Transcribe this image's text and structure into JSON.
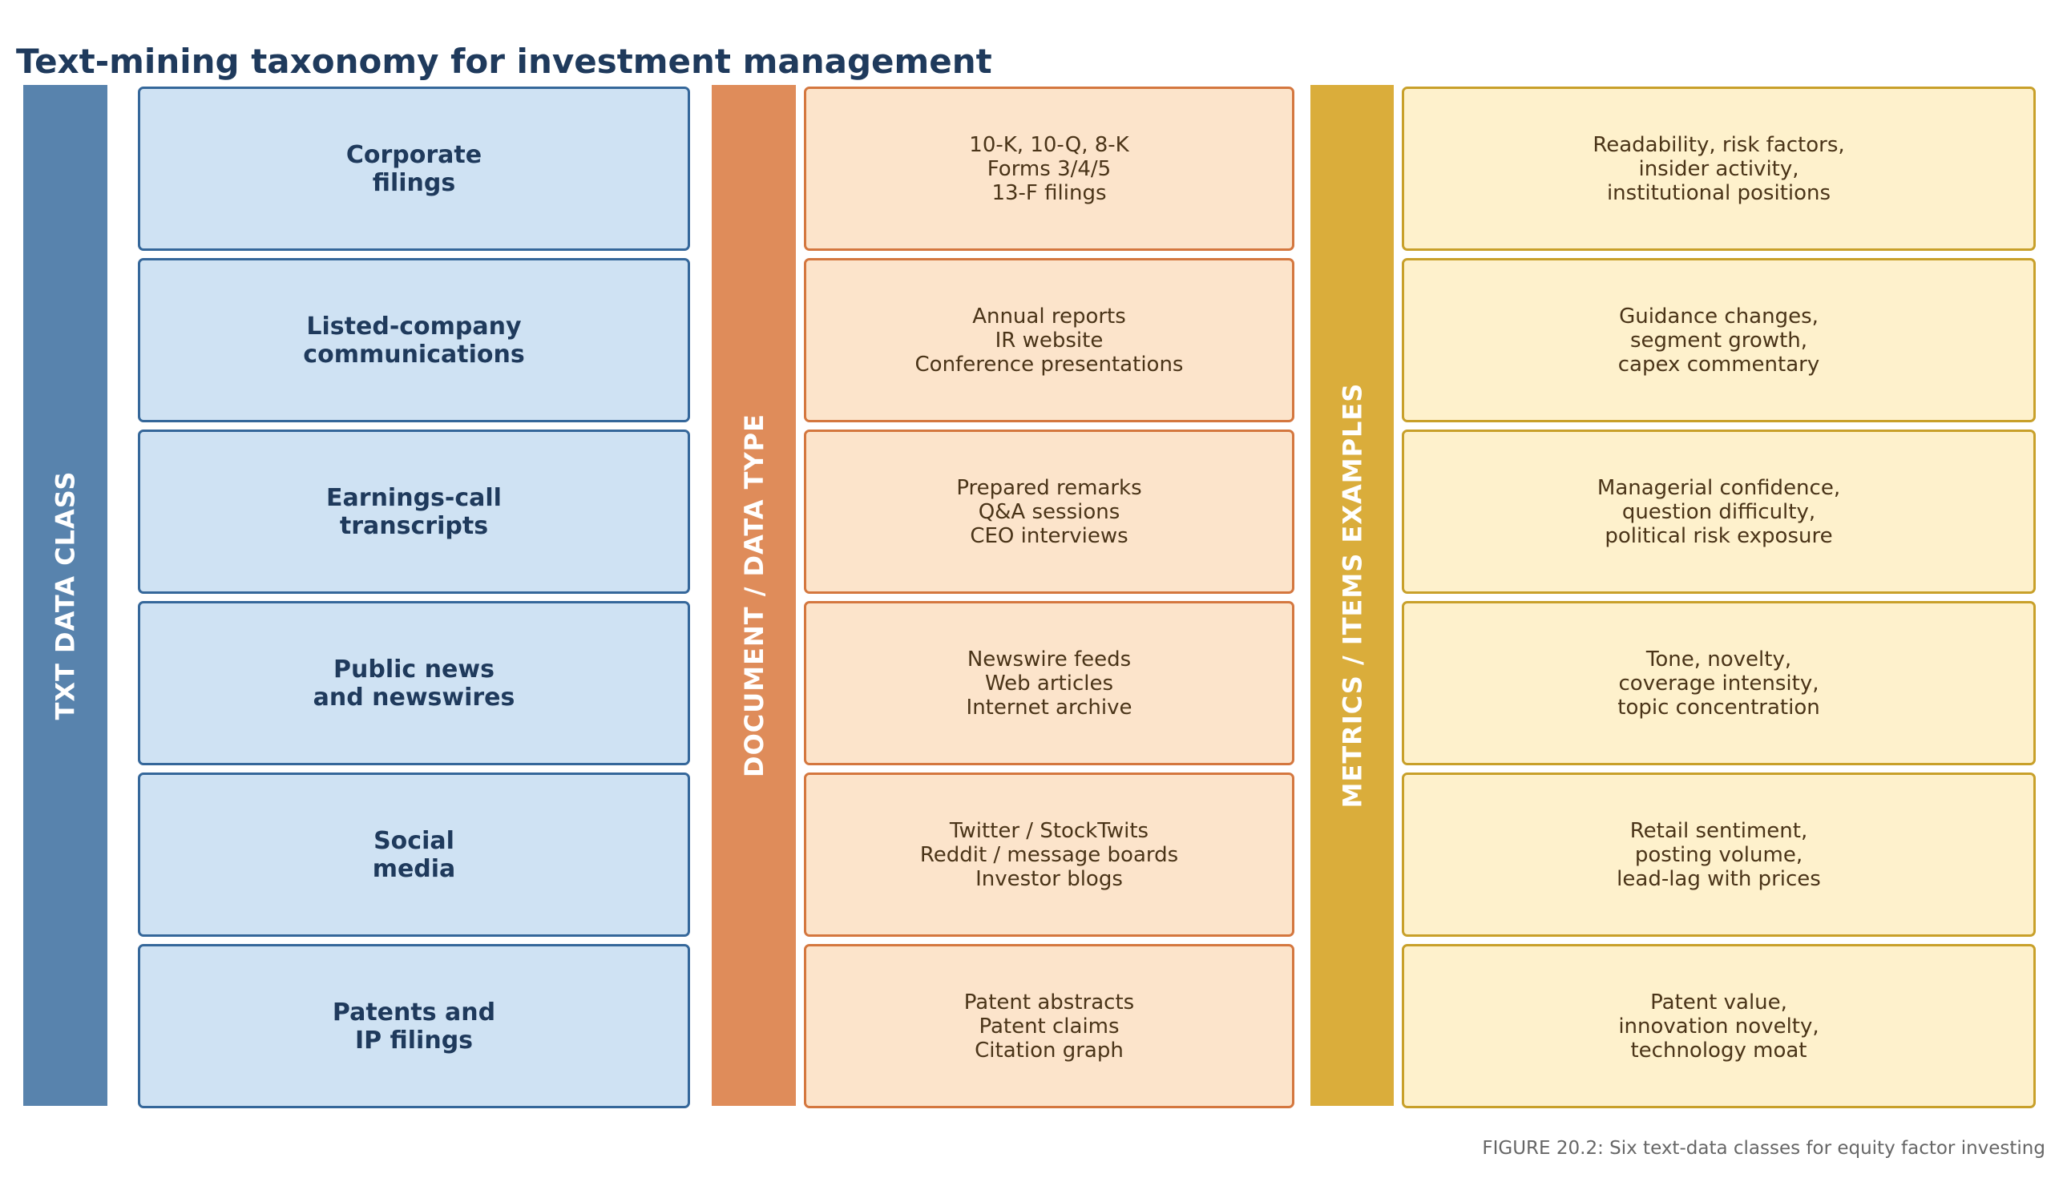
{
  "title": "Text-mining taxonomy for investment management",
  "bands": {
    "class_label": "TXT DATA CLASS",
    "document_label": "DOCUMENT / DATA TYPE",
    "metrics_label": "METRICS / ITEMS EXAMPLES"
  },
  "colors": {
    "class_band": "#5883ad",
    "class_box_fill": "#cfe2f3",
    "class_box_border": "#35679a",
    "document_band": "#df8c5a",
    "document_box_fill": "#fce4cb",
    "document_box_border": "#d4773f",
    "metrics_band": "#daad3b",
    "metrics_box_fill": "#fef1cc",
    "metrics_box_border": "#c8a02a",
    "title": "#1f3a5c"
  },
  "rows": [
    {
      "class": "Corporate\nfilings",
      "documents": "10-K, 10-Q, 8-K\nForms 3/4/5\n13-F filings",
      "metrics": "Readability, risk factors,\ninsider activity,\ninstitutional positions"
    },
    {
      "class": "Listed-company\ncommunications",
      "documents": "Annual reports\nIR website\nConference presentations",
      "metrics": "Guidance changes,\nsegment growth,\ncapex commentary"
    },
    {
      "class": "Earnings-call\ntranscripts",
      "documents": "Prepared remarks\nQ&A sessions\nCEO interviews",
      "metrics": "Managerial confidence,\nquestion difficulty,\npolitical risk exposure"
    },
    {
      "class": "Public news\nand newswires",
      "documents": "Newswire feeds\nWeb articles\nInternet archive",
      "metrics": "Tone, novelty,\ncoverage intensity,\ntopic concentration"
    },
    {
      "class": "Social\nmedia",
      "documents": "Twitter / StockTwits\nReddit / message boards\nInvestor blogs",
      "metrics": "Retail sentiment,\nposting volume,\nlead-lag with prices"
    },
    {
      "class": "Patents and\nIP filings",
      "documents": "Patent abstracts\nPatent claims\nCitation graph",
      "metrics": "Patent value,\ninnovation novelty,\ntechnology moat"
    }
  ],
  "caption": "FIGURE 20.2: Six text-data classes for equity factor investing"
}
